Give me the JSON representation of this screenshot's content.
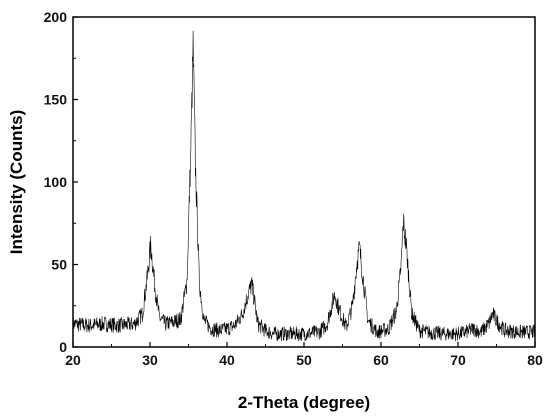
{
  "chart_data": {
    "type": "line",
    "xlabel": "2-Theta (degree)",
    "ylabel": "Intensity (Counts)",
    "xlim": [
      20,
      80
    ],
    "ylim": [
      0,
      200
    ],
    "xticks": [
      20,
      30,
      40,
      50,
      60,
      70,
      80
    ],
    "yticks": [
      0,
      50,
      100,
      150,
      200
    ],
    "grid": false,
    "line_color": "#000000",
    "series": [
      {
        "x": [
          20,
          22,
          24,
          26,
          28,
          29,
          29.6,
          30.1,
          30.6,
          31.2,
          32,
          33,
          34,
          34.8,
          35.3,
          35.6,
          35.9,
          36.4,
          37,
          38,
          39,
          40,
          41,
          42,
          42.8,
          43.2,
          43.5,
          44,
          45,
          46,
          48,
          50,
          52,
          53,
          53.6,
          54,
          54.6,
          55.5,
          56.3,
          56.9,
          57.2,
          57.6,
          58.3,
          59.5,
          61,
          62,
          62.6,
          62.9,
          63.3,
          64,
          65,
          66,
          68,
          70,
          71,
          72,
          73,
          74,
          74.5,
          75,
          76,
          78,
          80
        ],
        "values": [
          14,
          13,
          14,
          13,
          14,
          20,
          40,
          62,
          38,
          18,
          14,
          15,
          17,
          40,
          120,
          182,
          110,
          40,
          16,
          11,
          10,
          11,
          13,
          20,
          33,
          38,
          30,
          14,
          10,
          8,
          8,
          8,
          9,
          14,
          25,
          32,
          22,
          12,
          25,
          52,
          60,
          45,
          16,
          9,
          11,
          22,
          48,
          76,
          60,
          20,
          10,
          9,
          8,
          8,
          9,
          11,
          9,
          14,
          20,
          16,
          10,
          9,
          9
        ]
      }
    ]
  }
}
